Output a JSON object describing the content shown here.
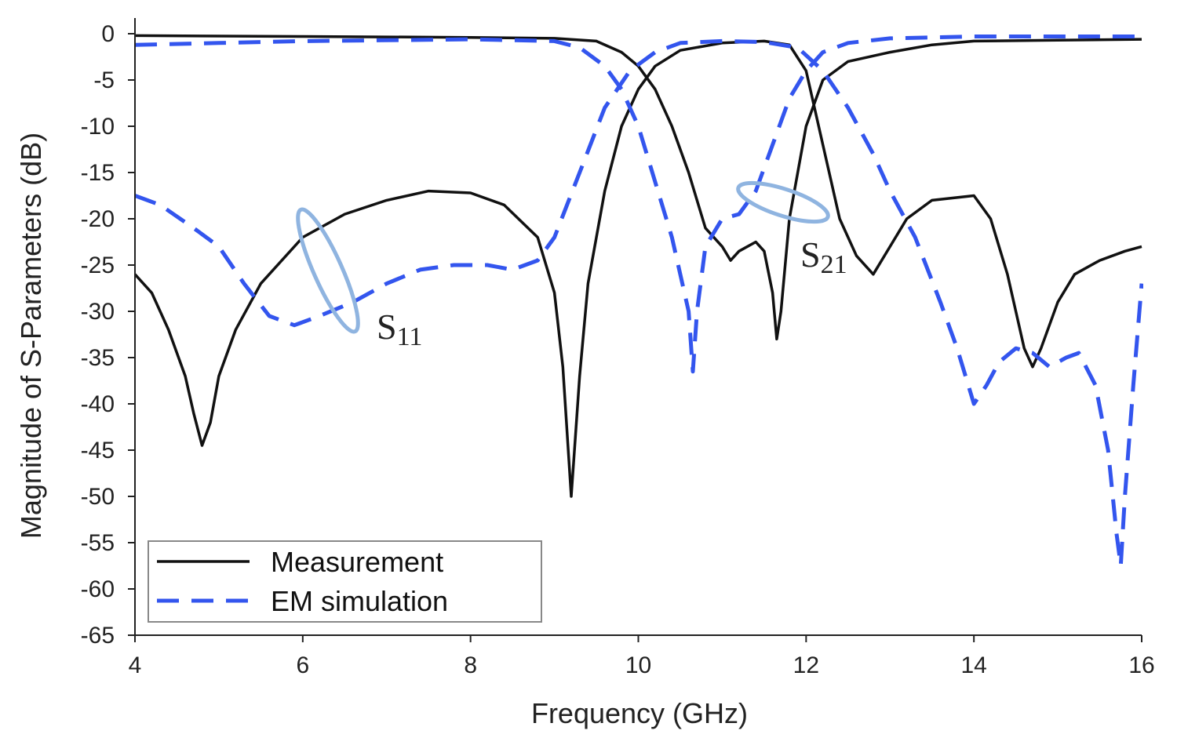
{
  "chart_data": {
    "type": "line",
    "title": "",
    "xlabel": "Frequency (GHz)",
    "ylabel": "Magnitude of S-Parameters (dB)",
    "xlim": [
      4,
      16
    ],
    "ylim": [
      -65,
      0
    ],
    "xticks": [
      4,
      6,
      8,
      10,
      12,
      14,
      16
    ],
    "yticks": [
      0,
      -5,
      -10,
      -15,
      -20,
      -25,
      -30,
      -35,
      -40,
      -45,
      -50,
      -55,
      -60,
      -65
    ],
    "grid": false,
    "legend_position": "bottom-left",
    "legend": [
      {
        "label": "Measurement",
        "style": "solid",
        "color": "#111111"
      },
      {
        "label": "EM simulation",
        "style": "dashed",
        "color": "#3355ee"
      }
    ],
    "annotations": [
      {
        "text": "S",
        "subscript": "11",
        "x": 6.9,
        "y": -32
      },
      {
        "text": "S",
        "subscript": "21",
        "x": 12.0,
        "y": -25
      }
    ],
    "series": [
      {
        "legend": "Measurement",
        "curve": "S11",
        "style": "solid",
        "color": "#111111",
        "points": [
          [
            4.0,
            -26
          ],
          [
            4.2,
            -28
          ],
          [
            4.4,
            -32
          ],
          [
            4.6,
            -37
          ],
          [
            4.7,
            -41
          ],
          [
            4.8,
            -44.5
          ],
          [
            4.9,
            -42
          ],
          [
            5.0,
            -37
          ],
          [
            5.2,
            -32
          ],
          [
            5.5,
            -27
          ],
          [
            6.0,
            -22
          ],
          [
            6.5,
            -19.5
          ],
          [
            7.0,
            -18
          ],
          [
            7.5,
            -17
          ],
          [
            8.0,
            -17.2
          ],
          [
            8.4,
            -18.5
          ],
          [
            8.8,
            -22
          ],
          [
            9.0,
            -28
          ],
          [
            9.1,
            -36
          ],
          [
            9.2,
            -50
          ],
          [
            9.3,
            -37
          ],
          [
            9.4,
            -27
          ],
          [
            9.6,
            -17
          ],
          [
            9.8,
            -10
          ],
          [
            10.0,
            -6
          ],
          [
            10.2,
            -3.5
          ],
          [
            10.5,
            -1.8
          ],
          [
            11.0,
            -1.0
          ],
          [
            11.5,
            -0.8
          ],
          [
            11.8,
            -1.2
          ],
          [
            12.0,
            -4
          ],
          [
            12.1,
            -8
          ],
          [
            12.2,
            -12
          ],
          [
            12.3,
            -16
          ],
          [
            12.4,
            -20
          ],
          [
            12.6,
            -24
          ],
          [
            12.8,
            -26
          ],
          [
            13.0,
            -23
          ],
          [
            13.2,
            -20
          ],
          [
            13.5,
            -18
          ],
          [
            14.0,
            -17.5
          ],
          [
            14.2,
            -20
          ],
          [
            14.4,
            -26
          ],
          [
            14.5,
            -30
          ],
          [
            14.6,
            -34
          ],
          [
            14.7,
            -36
          ],
          [
            14.8,
            -34
          ],
          [
            15.0,
            -29
          ],
          [
            15.2,
            -26
          ],
          [
            15.5,
            -24.5
          ],
          [
            15.8,
            -23.5
          ],
          [
            16.0,
            -23
          ]
        ]
      },
      {
        "legend": "Measurement",
        "curve": "S21",
        "style": "solid",
        "color": "#111111",
        "points": [
          [
            4.0,
            -0.2
          ],
          [
            6.0,
            -0.3
          ],
          [
            8.0,
            -0.4
          ],
          [
            9.0,
            -0.5
          ],
          [
            9.5,
            -0.8
          ],
          [
            9.8,
            -2
          ],
          [
            10.0,
            -3.5
          ],
          [
            10.2,
            -6
          ],
          [
            10.4,
            -10
          ],
          [
            10.6,
            -15
          ],
          [
            10.8,
            -21
          ],
          [
            11.0,
            -23
          ],
          [
            11.1,
            -24.5
          ],
          [
            11.2,
            -23.5
          ],
          [
            11.4,
            -22.5
          ],
          [
            11.5,
            -23.5
          ],
          [
            11.6,
            -28
          ],
          [
            11.65,
            -33
          ],
          [
            11.7,
            -30
          ],
          [
            11.8,
            -20
          ],
          [
            12.0,
            -10
          ],
          [
            12.2,
            -5
          ],
          [
            12.5,
            -3
          ],
          [
            13.0,
            -2
          ],
          [
            13.5,
            -1.2
          ],
          [
            14.0,
            -0.8
          ],
          [
            15.0,
            -0.7
          ],
          [
            16.0,
            -0.6
          ]
        ]
      },
      {
        "legend": "EM simulation",
        "curve": "S11",
        "style": "dashed",
        "color": "#3355ee",
        "points": [
          [
            4.0,
            -17.5
          ],
          [
            4.3,
            -18.5
          ],
          [
            4.7,
            -21
          ],
          [
            5.0,
            -23
          ],
          [
            5.3,
            -27
          ],
          [
            5.6,
            -30.5
          ],
          [
            5.9,
            -31.5
          ],
          [
            6.2,
            -30.5
          ],
          [
            6.6,
            -29
          ],
          [
            7.0,
            -27
          ],
          [
            7.4,
            -25.5
          ],
          [
            7.8,
            -25
          ],
          [
            8.2,
            -25
          ],
          [
            8.5,
            -25.5
          ],
          [
            8.8,
            -24.5
          ],
          [
            9.0,
            -22
          ],
          [
            9.3,
            -15
          ],
          [
            9.6,
            -8
          ],
          [
            9.9,
            -4
          ],
          [
            10.2,
            -2
          ],
          [
            10.5,
            -1
          ],
          [
            11.0,
            -0.8
          ],
          [
            11.5,
            -0.9
          ],
          [
            11.9,
            -1.5
          ],
          [
            12.2,
            -4
          ],
          [
            12.5,
            -8
          ],
          [
            12.8,
            -13
          ],
          [
            13.0,
            -17
          ],
          [
            13.3,
            -22
          ],
          [
            13.6,
            -29
          ],
          [
            13.8,
            -34
          ],
          [
            14.0,
            -40
          ],
          [
            14.15,
            -38
          ],
          [
            14.3,
            -35.5
          ],
          [
            14.5,
            -34
          ],
          [
            14.7,
            -34.5
          ],
          [
            14.9,
            -36
          ],
          [
            15.1,
            -35
          ],
          [
            15.25,
            -34.5
          ],
          [
            15.45,
            -38
          ],
          [
            15.6,
            -45
          ],
          [
            15.7,
            -54
          ],
          [
            15.75,
            -57.5
          ],
          [
            15.8,
            -50
          ],
          [
            15.9,
            -38
          ],
          [
            16.0,
            -27
          ]
        ]
      },
      {
        "legend": "EM simulation",
        "curve": "S21",
        "style": "dashed",
        "color": "#3355ee",
        "points": [
          [
            4.0,
            -1.2
          ],
          [
            5.0,
            -1.0
          ],
          [
            6.0,
            -0.8
          ],
          [
            7.0,
            -0.7
          ],
          [
            8.0,
            -0.6
          ],
          [
            9.0,
            -0.8
          ],
          [
            9.3,
            -1.5
          ],
          [
            9.6,
            -3.5
          ],
          [
            9.8,
            -6
          ],
          [
            10.0,
            -10
          ],
          [
            10.2,
            -16
          ],
          [
            10.4,
            -22
          ],
          [
            10.6,
            -30
          ],
          [
            10.65,
            -36.5
          ],
          [
            10.7,
            -30
          ],
          [
            10.8,
            -23
          ],
          [
            11.0,
            -20
          ],
          [
            11.2,
            -19.5
          ],
          [
            11.4,
            -17
          ],
          [
            11.6,
            -12
          ],
          [
            11.8,
            -7
          ],
          [
            12.0,
            -4
          ],
          [
            12.2,
            -2
          ],
          [
            12.5,
            -1
          ],
          [
            13.0,
            -0.5
          ],
          [
            14.0,
            -0.3
          ],
          [
            15.0,
            -0.3
          ],
          [
            16.0,
            -0.3
          ]
        ]
      }
    ]
  }
}
